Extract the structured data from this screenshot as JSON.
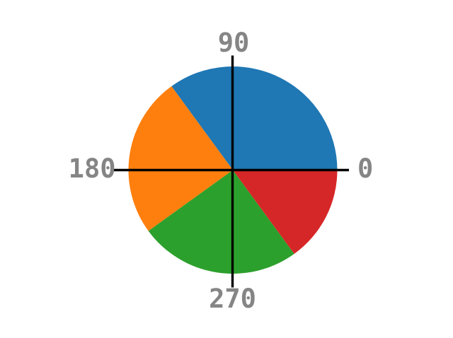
{
  "chart_data": {
    "type": "pie",
    "title": "",
    "start_angle_deg": 0,
    "direction": "counterclockwise",
    "slices": [
      {
        "value": 35,
        "start_deg": 0,
        "end_deg": 126,
        "color": "#1f77b4"
      },
      {
        "value": 25,
        "start_deg": 126,
        "end_deg": 216,
        "color": "#ff7f0e"
      },
      {
        "value": 25,
        "start_deg": 216,
        "end_deg": 306,
        "color": "#2ca02c"
      },
      {
        "value": 15,
        "start_deg": 306,
        "end_deg": 360,
        "color": "#d62728"
      }
    ],
    "angle_labels": {
      "right": "0",
      "top": "90",
      "left": "180",
      "bottom": "270"
    },
    "axis_color": "#000000",
    "label_color": "#858585",
    "background": "#ffffff",
    "legend": "none",
    "grid": "off"
  }
}
